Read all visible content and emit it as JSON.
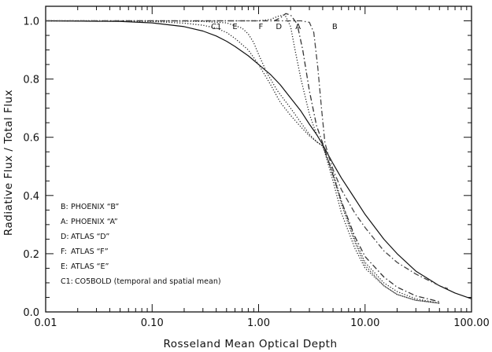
{
  "chart_data": {
    "type": "line",
    "title": "",
    "xlabel": "Rosseland Mean Optical Depth",
    "ylabel": "Radiative Flux / Total Flux",
    "xscale": "log",
    "xlim": [
      0.01,
      100
    ],
    "ylim": [
      0.0,
      1.05
    ],
    "grid": false,
    "legend_placement": "bottom-left",
    "x_ticks": [
      0.01,
      0.1,
      1,
      10,
      100
    ],
    "x_tick_labels": [
      "0.01",
      "0.10",
      "1.00",
      "10.00",
      "100.00"
    ],
    "y_ticks": [
      0.0,
      0.2,
      0.4,
      0.6,
      0.8,
      1.0
    ],
    "y_tick_labels": [
      "0.0",
      "0.2",
      "0.4",
      "0.6",
      "0.8",
      "1.0"
    ],
    "legend": [
      {
        "key": "B:",
        "text": "PHOENIX “B”"
      },
      {
        "key": "A:",
        "text": "PHOENIX “A”"
      },
      {
        "key": "D:",
        "text": "ATLAS “D”"
      },
      {
        "key": "F:",
        "text": "ATLAS “F”"
      },
      {
        "key": "E:",
        "text": "ATLAS “E”"
      },
      {
        "key": "C1:",
        "text": "CO5BOLD (temporal and spatial mean)"
      }
    ],
    "series": [
      {
        "name": "C1",
        "label": "C1",
        "style": "solid",
        "color": "#111111",
        "x": [
          0.01,
          0.05,
          0.1,
          0.2,
          0.3,
          0.4,
          0.5,
          0.6,
          0.8,
          1.0,
          1.3,
          1.6,
          2.0,
          2.5,
          3.0,
          3.5,
          4.0,
          5.0,
          6.0,
          8.0,
          10.0,
          15.0,
          20.0,
          30.0,
          50.0,
          70.0,
          100.0
        ],
        "y": [
          1.0,
          0.998,
          0.993,
          0.98,
          0.965,
          0.948,
          0.93,
          0.912,
          0.88,
          0.85,
          0.815,
          0.78,
          0.735,
          0.69,
          0.645,
          0.61,
          0.575,
          0.51,
          0.46,
          0.39,
          0.335,
          0.25,
          0.2,
          0.14,
          0.09,
          0.065,
          0.045
        ]
      },
      {
        "name": "E",
        "label": "E",
        "style": "dotted",
        "color": "#222222",
        "x": [
          0.01,
          0.1,
          0.2,
          0.3,
          0.4,
          0.5,
          0.6,
          0.8,
          1.0,
          1.3,
          1.6,
          2.0,
          2.5,
          3.0,
          3.5,
          4.0,
          5.0,
          6.0,
          8.0,
          10.0,
          15.0,
          20.0,
          30.0,
          50.0
        ],
        "y": [
          1.0,
          0.998,
          0.992,
          0.985,
          0.975,
          0.96,
          0.94,
          0.9,
          0.85,
          0.78,
          0.72,
          0.675,
          0.635,
          0.605,
          0.585,
          0.57,
          0.48,
          0.38,
          0.25,
          0.17,
          0.1,
          0.07,
          0.045,
          0.03
        ]
      },
      {
        "name": "F",
        "label": "F",
        "style": "dotted",
        "color": "#222222",
        "x": [
          0.01,
          0.1,
          0.3,
          0.5,
          0.7,
          0.8,
          0.9,
          1.0,
          1.2,
          1.5,
          2.0,
          2.5,
          3.0,
          3.5,
          4.0,
          5.0,
          6.0,
          8.0,
          10.0,
          15.0,
          20.0,
          30.0,
          50.0
        ],
        "y": [
          1.0,
          1.0,
          0.998,
          0.993,
          0.975,
          0.955,
          0.925,
          0.885,
          0.82,
          0.76,
          0.7,
          0.65,
          0.61,
          0.585,
          0.57,
          0.47,
          0.37,
          0.24,
          0.16,
          0.09,
          0.06,
          0.04,
          0.03
        ]
      },
      {
        "name": "D",
        "label": "D",
        "style": "dotted",
        "color": "#222222",
        "x": [
          0.01,
          0.1,
          0.5,
          1.0,
          1.3,
          1.5,
          1.7,
          1.8,
          2.0,
          2.2,
          2.5,
          3.0,
          3.5,
          4.0,
          5.0,
          6.0,
          8.0,
          10.0,
          15.0,
          20.0,
          30.0,
          50.0
        ],
        "y": [
          1.0,
          1.0,
          1.0,
          1.0,
          1.005,
          1.015,
          1.02,
          1.015,
          0.98,
          0.9,
          0.8,
          0.68,
          0.61,
          0.575,
          0.45,
          0.34,
          0.22,
          0.15,
          0.09,
          0.06,
          0.04,
          0.03
        ]
      },
      {
        "name": "A",
        "label": "A",
        "style": "dash-dot",
        "color": "#333333",
        "x": [
          0.01,
          0.1,
          0.5,
          1.0,
          1.4,
          1.6,
          1.8,
          2.0,
          2.3,
          2.6,
          3.0,
          3.5,
          4.0,
          5.0,
          6.0,
          8.0,
          10.0,
          15.0,
          20.0,
          30.0,
          50.0
        ],
        "y": [
          1.0,
          1.0,
          1.0,
          1.0,
          1.0,
          1.01,
          1.025,
          1.02,
          0.99,
          0.9,
          0.76,
          0.64,
          0.58,
          0.47,
          0.38,
          0.26,
          0.19,
          0.12,
          0.085,
          0.055,
          0.035
        ]
      },
      {
        "name": "B",
        "label": "B",
        "style": "dash-dot",
        "color": "#444444",
        "x": [
          0.01,
          0.1,
          0.5,
          1.0,
          2.0,
          2.5,
          3.0,
          3.3,
          3.6,
          3.9,
          4.2,
          4.6,
          5.0,
          6.0,
          8.0,
          10.0,
          15.0,
          20.0,
          30.0,
          50.0,
          60.0
        ],
        "y": [
          1.0,
          1.0,
          1.0,
          1.0,
          1.0,
          1.0,
          0.995,
          0.96,
          0.84,
          0.7,
          0.58,
          0.53,
          0.49,
          0.42,
          0.34,
          0.29,
          0.21,
          0.17,
          0.13,
          0.09,
          0.08
        ]
      }
    ]
  }
}
